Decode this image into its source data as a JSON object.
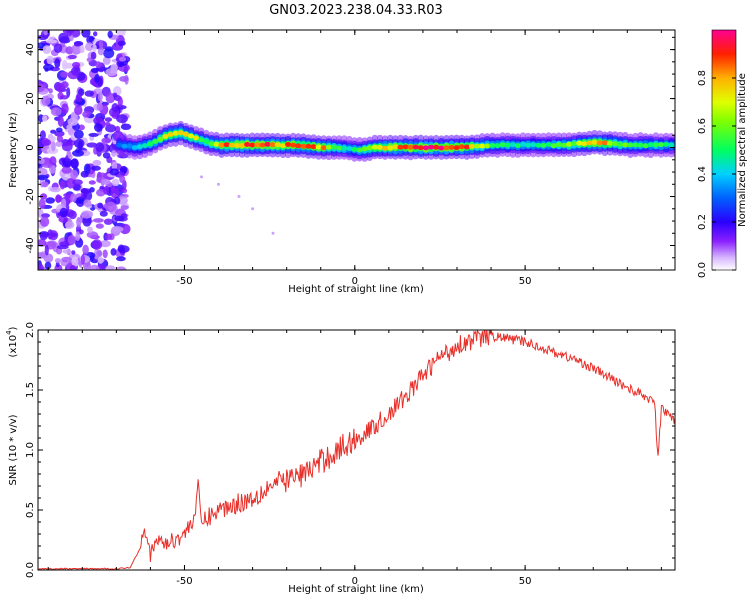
{
  "title": "GN03.2023.238.04.33.R03",
  "chart_data": [
    {
      "type": "heatmap",
      "title": "GN03.2023.238.04.33.R03",
      "xlabel": "Height of straight line (km)",
      "ylabel": "Frequency (Hz)",
      "xlim": [
        -93,
        94
      ],
      "ylim": [
        -50,
        48
      ],
      "x_ticks": [
        -50,
        0,
        50
      ],
      "y_ticks": [
        -40,
        -20,
        0,
        20,
        40
      ],
      "colorbar": {
        "label": "Normalized spectral amplitude",
        "range": [
          0.0,
          1.0
        ],
        "ticks": [
          0.0,
          0.2,
          0.4,
          0.6,
          0.8
        ],
        "tick_labels": [
          "0.0",
          "0.2",
          "0.4",
          "0.6",
          "0.8"
        ],
        "colormap": [
          "#ffffff",
          "#b06bff",
          "#7a00ff",
          "#0000ff",
          "#00c8ff",
          "#00ff40",
          "#c8ff00",
          "#ffaa00",
          "#ff0000",
          "#ff0080"
        ]
      },
      "ridge": {
        "x": [
          -70,
          -65,
          -60,
          -56,
          -52,
          -48,
          -44,
          -40,
          -30,
          -20,
          -10,
          -5,
          0,
          5,
          10,
          20,
          30,
          40,
          50,
          60,
          70,
          80,
          90,
          94
        ],
        "y": [
          1,
          0,
          2,
          5,
          6,
          4,
          2,
          1,
          1,
          1,
          0,
          0,
          -1,
          0,
          0,
          0,
          0,
          1,
          1,
          1,
          2,
          1,
          1,
          1
        ],
        "amp": [
          0.3,
          0.4,
          0.5,
          0.75,
          0.8,
          0.7,
          0.55,
          0.85,
          0.9,
          0.85,
          0.8,
          0.5,
          0.5,
          0.75,
          0.85,
          0.95,
          0.9,
          0.55,
          0.45,
          0.55,
          0.85,
          0.55,
          0.5,
          0.4
        ]
      },
      "noise_region_x": [
        -93,
        -67
      ],
      "stray_points": [
        [
          -45,
          -12
        ],
        [
          -40,
          -15
        ],
        [
          -34,
          -20
        ],
        [
          -30,
          -25
        ],
        [
          -24,
          -35
        ]
      ],
      "grid": false
    },
    {
      "type": "line",
      "xlabel": "Height of straight line (km)",
      "ylabel": "SNR (10 * v/v)",
      "y_scale_label": "(x10",
      "y_scale_exponent": "4",
      "xlim": [
        -93,
        94
      ],
      "ylim": [
        0.0,
        2.0
      ],
      "x_ticks": [
        -50,
        0,
        50
      ],
      "x_tick_labels": [
        "-50",
        "0",
        "50"
      ],
      "y_ticks": [
        0.0,
        0.5,
        1.0,
        1.5,
        2.0
      ],
      "y_tick_labels": [
        "0.0",
        "0.5",
        "1.0",
        "1.5",
        "2.0"
      ],
      "color": "#e8302a",
      "series": [
        {
          "x": [
            -93,
            -80,
            -70,
            -66,
            -63,
            -62,
            -61,
            -60,
            -58,
            -55,
            -50,
            -47,
            -46,
            -45,
            -40,
            -35,
            -30,
            -25,
            -20,
            -15,
            -10,
            -5,
            0,
            5,
            10,
            15,
            20,
            25,
            28,
            30,
            33,
            35,
            40,
            45,
            50,
            55,
            60,
            65,
            70,
            75,
            80,
            85,
            88,
            89,
            90,
            92,
            94
          ],
          "y": [
            0.01,
            0.01,
            0.01,
            0.02,
            0.18,
            0.37,
            0.3,
            0.12,
            0.25,
            0.22,
            0.3,
            0.45,
            0.68,
            0.4,
            0.5,
            0.55,
            0.6,
            0.7,
            0.75,
            0.8,
            0.9,
            1.0,
            1.08,
            1.18,
            1.3,
            1.45,
            1.62,
            1.78,
            1.82,
            1.88,
            1.9,
            1.92,
            1.95,
            1.93,
            1.9,
            1.85,
            1.8,
            1.75,
            1.68,
            1.6,
            1.52,
            1.45,
            1.4,
            0.92,
            1.35,
            1.3,
            1.25
          ]
        }
      ],
      "grid": false
    }
  ]
}
